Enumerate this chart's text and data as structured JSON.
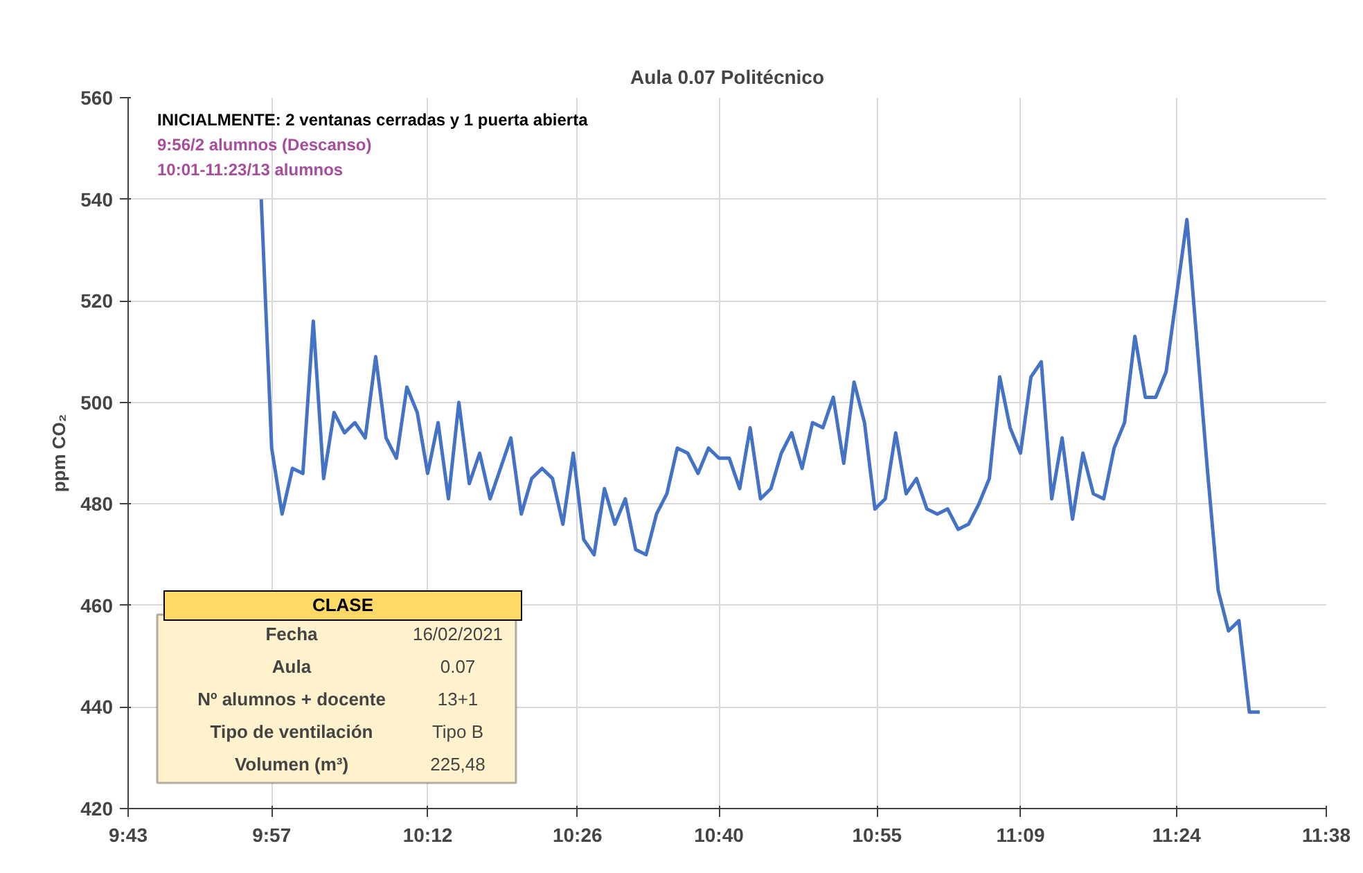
{
  "chart_data": {
    "type": "line",
    "title": "Aula 0.07 Politécnico",
    "ylabel": "ppm CO₂",
    "x": [
      9.9333,
      9.95,
      9.9667,
      9.9833,
      10,
      10.0167,
      10.0333,
      10.05,
      10.0667,
      10.0833,
      10.1,
      10.1167,
      10.1333,
      10.15,
      10.1667,
      10.1833,
      10.2,
      10.2167,
      10.2333,
      10.25,
      10.2667,
      10.2833,
      10.3,
      10.3167,
      10.3333,
      10.35,
      10.3667,
      10.3833,
      10.4,
      10.4167,
      10.4333,
      10.45,
      10.4667,
      10.4833,
      10.5,
      10.5167,
      10.5333,
      10.55,
      10.5667,
      10.5833,
      10.6,
      10.6167,
      10.6333,
      10.65,
      10.6667,
      10.6833,
      10.7,
      10.7167,
      10.7333,
      10.75,
      10.7667,
      10.7833,
      10.8,
      10.8167,
      10.8333,
      10.85,
      10.8667,
      10.8833,
      10.9,
      10.9167,
      10.9333,
      10.95,
      10.9667,
      10.9833,
      11,
      11.0167,
      11.0333,
      11.05,
      11.0667,
      11.0833,
      11.1,
      11.1167,
      11.1333,
      11.15,
      11.1667,
      11.1833,
      11.2,
      11.2167,
      11.2333,
      11.25,
      11.2667,
      11.2833,
      11.3,
      11.3167,
      11.3333,
      11.35,
      11.3667,
      11.3833,
      11.4,
      11.4167,
      11.4333,
      11.45,
      11.4667,
      11.4833,
      11.5,
      11.5167,
      11.5333
    ],
    "values": [
      540,
      491,
      478,
      487,
      486,
      516,
      485,
      498,
      494,
      496,
      493,
      509,
      493,
      489,
      503,
      498,
      486,
      496,
      481,
      500,
      484,
      490,
      481,
      487,
      493,
      478,
      485,
      487,
      485,
      476,
      490,
      473,
      470,
      483,
      476,
      481,
      471,
      470,
      478,
      482,
      491,
      490,
      486,
      491,
      489,
      489,
      483,
      495,
      481,
      483,
      490,
      494,
      487,
      496,
      495,
      501,
      488,
      504,
      496,
      479,
      481,
      494,
      482,
      485,
      479,
      478,
      479,
      475,
      476,
      480,
      485,
      505,
      495,
      490,
      505,
      508,
      481,
      493,
      477,
      490,
      482,
      481,
      491,
      496,
      513,
      501,
      501,
      506,
      521,
      536,
      511,
      486,
      463,
      455,
      457,
      439,
      439
    ],
    "color": "#4472c4",
    "xlim": [
      9.72,
      11.64
    ],
    "xticks": [
      {
        "value": 9.72,
        "label": "9:43"
      },
      {
        "value": 9.95,
        "label": "9:57"
      },
      {
        "value": 10.2,
        "label": "10:12"
      },
      {
        "value": 10.44,
        "label": "10:26"
      },
      {
        "value": 10.6667,
        "label": "10:40"
      },
      {
        "value": 10.92,
        "label": "10:55"
      },
      {
        "value": 11.15,
        "label": "11:09"
      },
      {
        "value": 11.4,
        "label": "11:24"
      },
      {
        "value": 11.64,
        "label": "11:38"
      }
    ],
    "ylim": [
      420,
      560
    ],
    "yticks": [
      420,
      440,
      460,
      480,
      500,
      520,
      540,
      560
    ],
    "grid": true,
    "annotations": [
      "INICIALMENTE: 2 ventanas cerradas y 1 puerta abierta",
      "9:56/2 alumnos (Descanso)",
      "10:01-11:23/13 alumnos",
      "CLASE",
      "Fecha",
      "16/02/2021",
      "Aula",
      "0.07",
      "Nº alumnos + docente",
      "13+1",
      "Tipo de ventilación",
      "Tipo B",
      "Volumen (m³)",
      "225,48"
    ]
  }
}
